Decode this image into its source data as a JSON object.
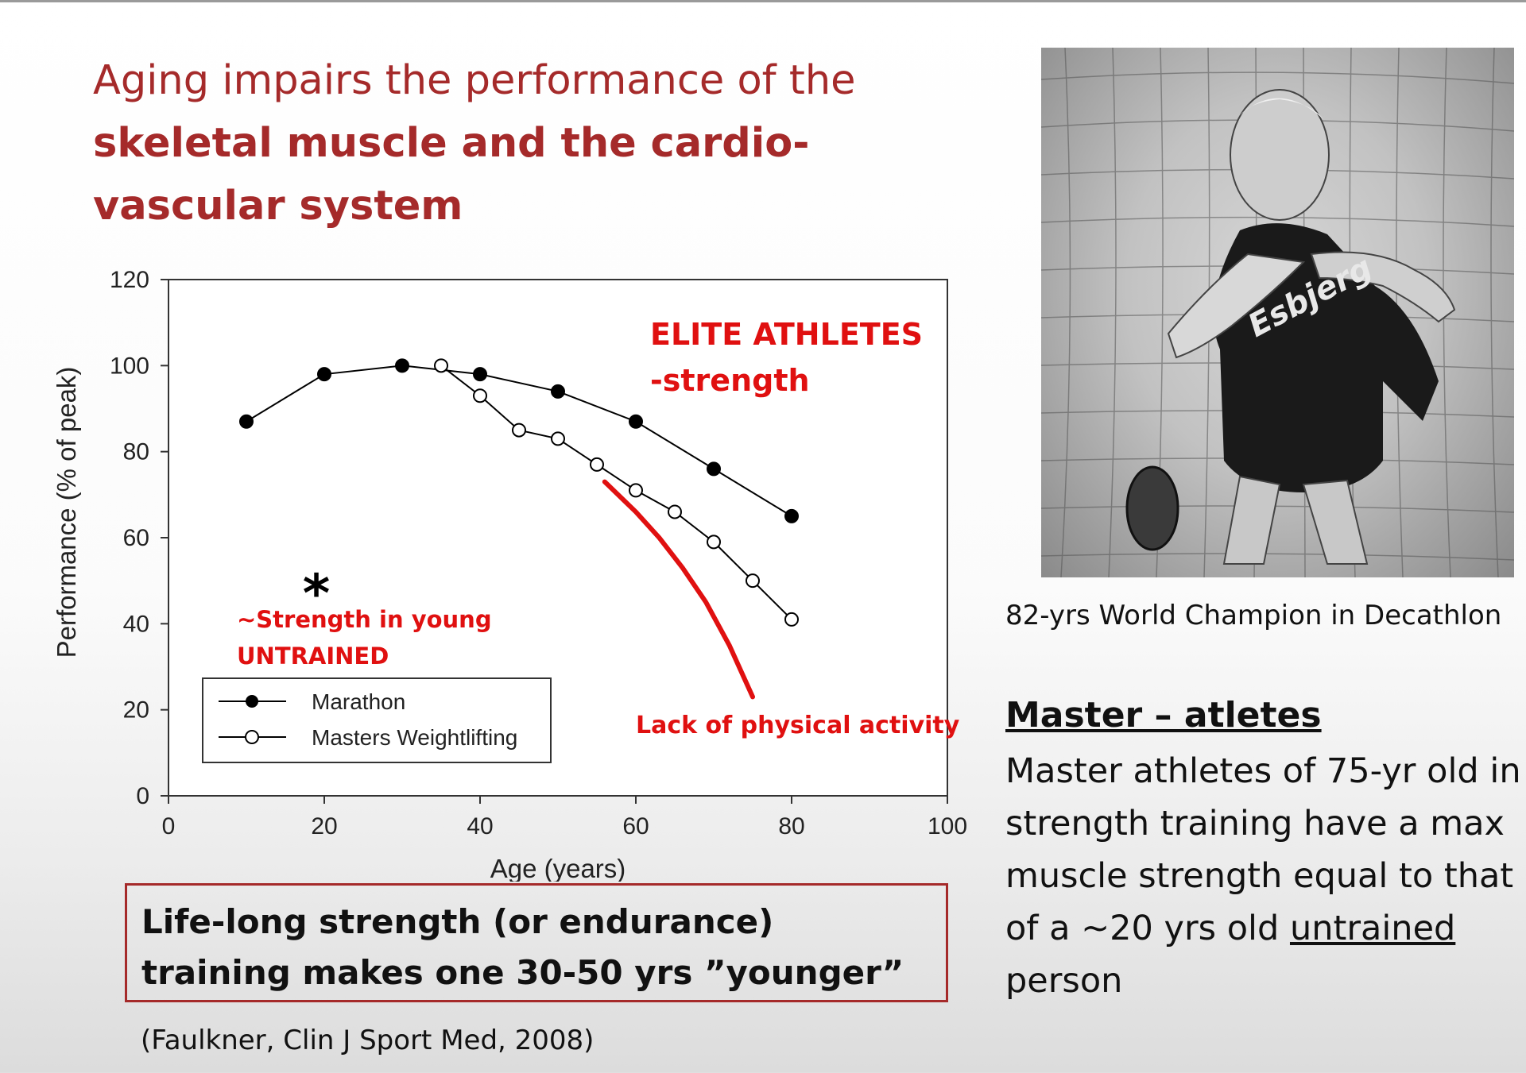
{
  "slide": {
    "title_normal": "Aging impairs the performance of the ",
    "title_bold": "skeletal muscle and the cardio-vascular system",
    "photo_caption": "82-yrs World Champion in Decathlon",
    "photo_shirt_text": "Esbjerg",
    "master_heading": "Master – atletes",
    "master_body_pre": "Master athletes of 75-yr old in strength training have a max muscle strength equal to that of a ~20 yrs old ",
    "master_body_underlined": "untrained",
    "master_body_post": " person",
    "conclusion": "Life-long strength (or endurance) training makes one 30-50 yrs ”younger”",
    "citation": "(Faulkner, Clin J Sport Med, 2008)"
  },
  "chart_data": {
    "type": "line",
    "title": "",
    "xlabel": "Age (years)",
    "ylabel": "Performance (% of peak)",
    "xlim": [
      0,
      100
    ],
    "ylim": [
      0,
      120
    ],
    "x_ticks": [
      0,
      20,
      40,
      60,
      80,
      100
    ],
    "y_ticks": [
      0,
      20,
      40,
      60,
      80,
      100,
      120
    ],
    "grid": false,
    "legend_position": "bottom-left",
    "series": [
      {
        "name": "Marathon",
        "marker": "filled-circle",
        "color": "#000000",
        "x": [
          10,
          20,
          30,
          40,
          50,
          60,
          70,
          80
        ],
        "y": [
          87,
          98,
          100,
          98,
          94,
          87,
          76,
          65
        ]
      },
      {
        "name": "Masters Weightlifting",
        "marker": "open-circle",
        "color": "#000000",
        "x": [
          35,
          40,
          45,
          50,
          55,
          60,
          65,
          70,
          75,
          80
        ],
        "y": [
          100,
          93,
          85,
          83,
          77,
          71,
          66,
          59,
          50,
          41
        ]
      },
      {
        "name": "Lack of physical activity",
        "marker": "none",
        "color": "#e01010",
        "x": [
          56,
          60,
          63,
          66,
          69,
          72,
          75
        ],
        "y": [
          73,
          66,
          60,
          53,
          45,
          35,
          23
        ]
      }
    ],
    "annotations": {
      "elite_line1": "ELITE ATHLETES",
      "elite_line2": "-strength",
      "young_line1": "~Strength in young",
      "young_line2": "UNTRAINED",
      "young_marker": "*",
      "young_marker_x": 20,
      "young_marker_y": 48,
      "inactivity": "Lack of physical activity"
    }
  }
}
